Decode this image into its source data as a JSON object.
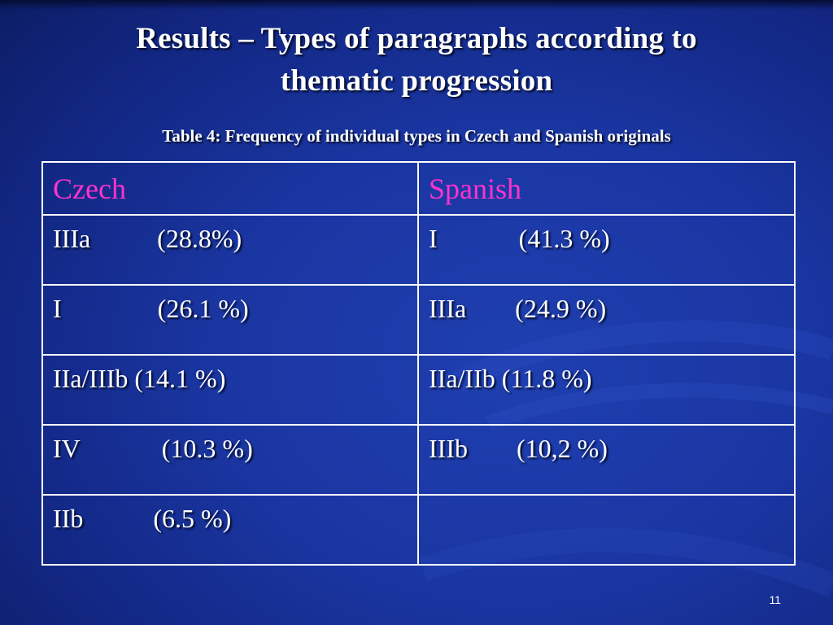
{
  "slide": {
    "title_line1": "Results – Types of paragraphs according to",
    "title_line2": "thematic progression",
    "caption": "Table 4: Frequency of individual types in Czech and Spanish originals",
    "page_number": "11"
  },
  "table": {
    "headers": [
      "Czech",
      "Spanish"
    ],
    "rows": [
      {
        "czech": {
          "type": "IIIa",
          "pct": "(28.8%)"
        },
        "spanish": {
          "type": "I",
          "pct": "(41.3 %)"
        }
      },
      {
        "czech": {
          "type": "I",
          "pct": "(26.1 %)"
        },
        "spanish": {
          "type": "IIIa",
          "pct": "(24.9 %)"
        }
      },
      {
        "czech": {
          "type": "IIa/IIIb",
          "pct": "(14.1 %)"
        },
        "spanish": {
          "type": "IIa/IIb",
          "pct": "(11.8 %)"
        }
      },
      {
        "czech": {
          "type": "IV",
          "pct": "(10.3 %)"
        },
        "spanish": {
          "type": "IIIb",
          "pct": "(10,2 %)"
        }
      },
      {
        "czech": {
          "type": "IIb",
          "pct": "(6.5 %)"
        },
        "spanish": {
          "type": "",
          "pct": ""
        }
      }
    ]
  },
  "colors": {
    "header_text": "#ff33cc",
    "body_text": "#ffffff",
    "background": "#1a36a2"
  }
}
